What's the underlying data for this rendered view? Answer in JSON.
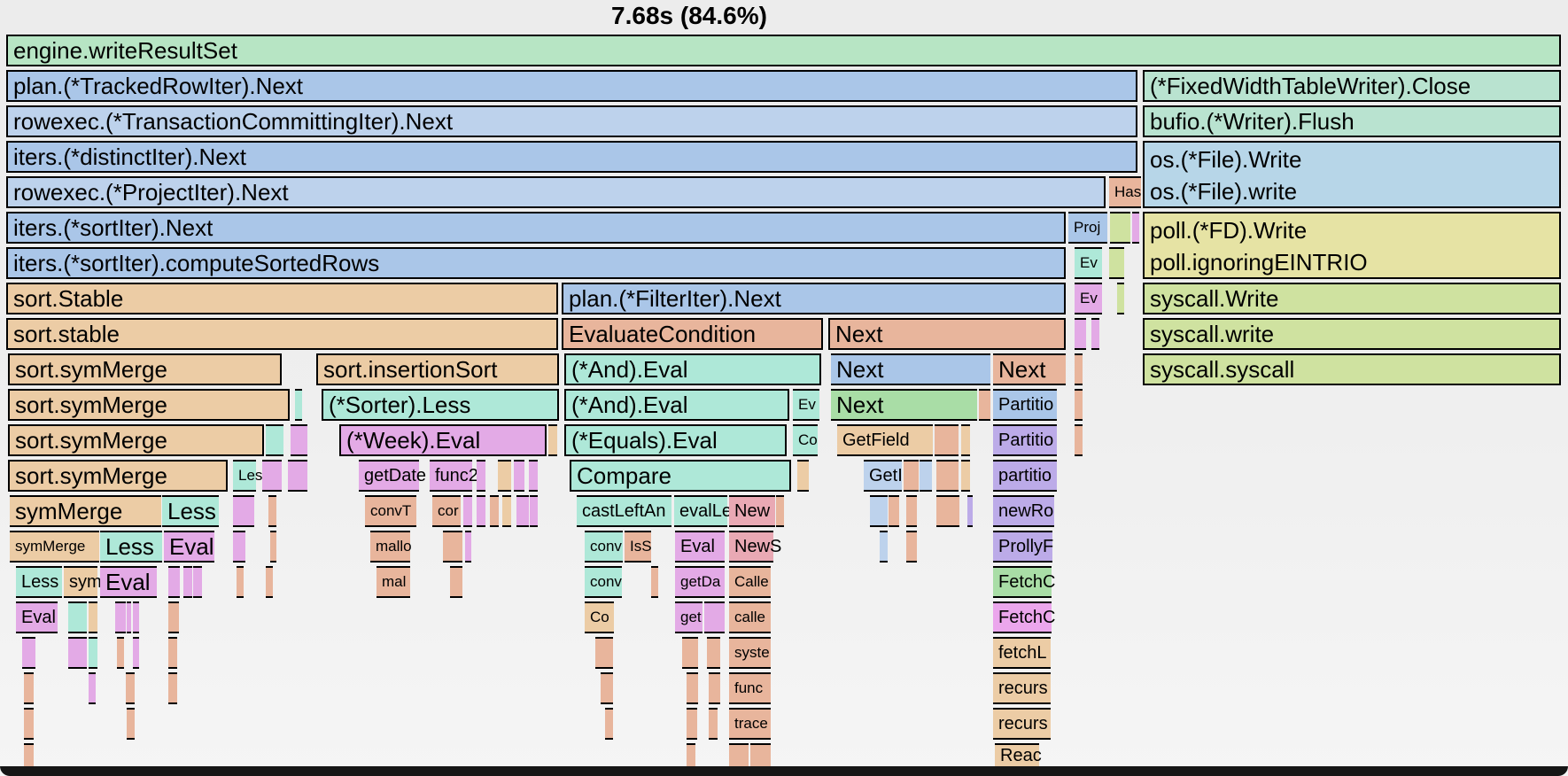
{
  "title": "7.68s (84.6%)",
  "palette": {
    "palegreen": "#b7e5c4",
    "tealgreen": "#b9e3d0",
    "blue": "#aac6e8",
    "blue2": "#bdd2ec",
    "lightblue": "#b7d6e8",
    "yellow": "#e6e3a4",
    "yellowgreen": "#cfe2a0",
    "tan": "#eccca5",
    "salmon": "#e8b59c",
    "pink": "#e9a9b4",
    "teal": "#aee8d8",
    "violet": "#e3aae6",
    "purple": "#bcabe8",
    "green": "#a9dda6",
    "orchid": "#eba6ec"
  },
  "chart_data": {
    "type": "flamegraph-icicle",
    "title": "7.68s (84.6%)",
    "note": "bars = [x, width, colorKey, label, fontSize(L/M/S), optional merge flag mt/mb]",
    "rows": [
      [
        [
          7,
          1755,
          "palegreen",
          "engine.writeResultSet",
          "L"
        ]
      ],
      [
        [
          7,
          1277,
          "blue",
          "plan.(*TrackedRowIter).Next",
          "L"
        ],
        [
          1290,
          472,
          "tealgreen",
          "(*FixedWidthTableWriter).Close",
          "L"
        ]
      ],
      [
        [
          7,
          1277,
          "blue2",
          "rowexec.(*TransactionCommittingIter).Next",
          "L"
        ],
        [
          1290,
          472,
          "tealgreen",
          "bufio.(*Writer).Flush",
          "L"
        ]
      ],
      [
        [
          7,
          1277,
          "blue",
          "iters.(*distinctIter).Next",
          "L"
        ],
        [
          1290,
          472,
          "lightblue",
          "os.(*File).Write",
          "L",
          "mb"
        ]
      ],
      [
        [
          7,
          1241,
          "blue2",
          "rowexec.(*ProjectIter).Next",
          "L"
        ],
        [
          1252,
          36,
          "salmon",
          "Has",
          "S"
        ],
        [
          1290,
          472,
          "lightblue",
          "os.(*File).write",
          "L",
          "mt"
        ]
      ],
      [
        [
          7,
          1196,
          "blue",
          "iters.(*sortIter).Next",
          "L"
        ],
        [
          1206,
          44,
          "blue",
          "Proj",
          "S"
        ],
        [
          1253,
          23,
          "yellowgreen",
          "",
          ""
        ],
        [
          1278,
          8,
          "violet",
          "",
          ""
        ],
        [
          1290,
          472,
          "yellow",
          "poll.(*FD).Write",
          "L",
          "mb"
        ]
      ],
      [
        [
          7,
          1196,
          "blue",
          "iters.(*sortIter).computeSortedRows",
          "L"
        ],
        [
          1213,
          31,
          "teal",
          "Ev",
          "S"
        ],
        [
          1252,
          17,
          "yellowgreen",
          "",
          ""
        ],
        [
          1290,
          472,
          "yellow",
          "poll.ignoringEINTRIO",
          "L",
          "mt"
        ]
      ],
      [
        [
          7,
          623,
          "tan",
          "sort.Stable",
          "L"
        ],
        [
          634,
          569,
          "blue",
          "plan.(*FilterIter).Next",
          "L"
        ],
        [
          1213,
          31,
          "violet",
          "Ev",
          "S"
        ],
        [
          1261,
          8,
          "yellowgreen",
          "",
          ""
        ],
        [
          1290,
          472,
          "yellowgreen",
          "syscall.Write",
          "L"
        ]
      ],
      [
        [
          7,
          623,
          "tan",
          "sort.stable",
          "L"
        ],
        [
          634,
          295,
          "salmon",
          "EvaluateCondition",
          "L"
        ],
        [
          935,
          268,
          "salmon",
          "Next",
          "L"
        ],
        [
          1213,
          13,
          "violet",
          "",
          ""
        ],
        [
          1232,
          9,
          "violet",
          "",
          ""
        ],
        [
          1290,
          472,
          "yellowgreen",
          "syscall.write",
          "L"
        ]
      ],
      [
        [
          9,
          309,
          "tan",
          "sort.symMerge",
          "L"
        ],
        [
          357,
          274,
          "tan",
          "sort.insertionSort",
          "L"
        ],
        [
          637,
          290,
          "teal",
          "(*And).Eval",
          "L"
        ],
        [
          938,
          180,
          "blue",
          "Next",
          "L"
        ],
        [
          1121,
          82,
          "salmon",
          "Next",
          "L"
        ],
        [
          1213,
          9,
          "salmon",
          "",
          ""
        ],
        [
          1290,
          472,
          "yellowgreen",
          "syscall.syscall",
          "L"
        ]
      ],
      [
        [
          9,
          318,
          "tan",
          "sort.symMerge",
          "L"
        ],
        [
          333,
          8,
          "teal",
          "",
          ""
        ],
        [
          363,
          268,
          "teal",
          "(*Sorter).Less",
          "L"
        ],
        [
          637,
          254,
          "teal",
          "(*And).Eval",
          "L"
        ],
        [
          895,
          30,
          "teal",
          "Ev",
          "S"
        ],
        [
          938,
          165,
          "green",
          "Next",
          "L"
        ],
        [
          1105,
          13,
          "salmon",
          "",
          ""
        ],
        [
          1121,
          72,
          "blue",
          "Partitio",
          "M"
        ],
        [
          1213,
          9,
          "salmon",
          "",
          ""
        ]
      ],
      [
        [
          9,
          289,
          "tan",
          "sort.symMerge",
          "L"
        ],
        [
          300,
          20,
          "teal",
          "",
          ""
        ],
        [
          328,
          19,
          "violet",
          "",
          ""
        ],
        [
          383,
          234,
          "violet",
          "(*Week).Eval",
          "L"
        ],
        [
          619,
          10,
          "tan",
          "",
          ""
        ],
        [
          637,
          251,
          "teal",
          "(*Equals).Eval",
          "L"
        ],
        [
          895,
          28,
          "teal",
          "Co",
          "S"
        ],
        [
          945,
          108,
          "tan",
          "GetField",
          "M"
        ],
        [
          1055,
          27,
          "salmon",
          "",
          ""
        ],
        [
          1085,
          10,
          "tan",
          "",
          ""
        ],
        [
          1121,
          72,
          "purple",
          "Partitio",
          "M"
        ],
        [
          1213,
          9,
          "salmon",
          "",
          ""
        ]
      ],
      [
        [
          9,
          248,
          "tan",
          "sort.symMerge",
          "L"
        ],
        [
          263,
          26,
          "teal",
          "Les",
          "S"
        ],
        [
          296,
          22,
          "violet",
          "",
          ""
        ],
        [
          325,
          22,
          "violet",
          "",
          ""
        ],
        [
          405,
          68,
          "violet",
          "getDate",
          "M"
        ],
        [
          485,
          48,
          "violet",
          "func2",
          "M"
        ],
        [
          538,
          10,
          "violet",
          "",
          ""
        ],
        [
          562,
          15,
          "tan",
          "",
          ""
        ],
        [
          580,
          12,
          "violet",
          "",
          ""
        ],
        [
          597,
          10,
          "violet",
          "",
          ""
        ],
        [
          643,
          250,
          "teal",
          "Compare",
          "L"
        ],
        [
          900,
          13,
          "tan",
          "",
          ""
        ],
        [
          975,
          43,
          "blue2",
          "GetI",
          "M"
        ],
        [
          1020,
          17,
          "salmon",
          "",
          ""
        ],
        [
          1038,
          14,
          "blue2",
          "",
          ""
        ],
        [
          1057,
          25,
          "salmon",
          "",
          ""
        ],
        [
          1085,
          10,
          "tan",
          "",
          ""
        ],
        [
          1121,
          72,
          "purple",
          "partitio",
          "M"
        ]
      ],
      [
        [
          11,
          171,
          "tan",
          "symMerge",
          "L"
        ],
        [
          183,
          64,
          "teal",
          "Less",
          "L"
        ],
        [
          263,
          24,
          "violet",
          "",
          ""
        ],
        [
          303,
          9,
          "salmon",
          "",
          ""
        ],
        [
          412,
          58,
          "salmon",
          "convT",
          "S"
        ],
        [
          488,
          32,
          "salmon",
          "cor",
          "S"
        ],
        [
          523,
          10,
          "violet",
          "",
          ""
        ],
        [
          538,
          10,
          "violet",
          "",
          ""
        ],
        [
          553,
          10,
          "salmon",
          "",
          ""
        ],
        [
          567,
          10,
          "tan",
          "",
          ""
        ],
        [
          583,
          14,
          "violet",
          "",
          ""
        ],
        [
          598,
          9,
          "violet",
          "",
          ""
        ],
        [
          651,
          107,
          "teal",
          "castLeftAn",
          "M"
        ],
        [
          761,
          60,
          "teal",
          "evalLe",
          "M"
        ],
        [
          823,
          52,
          "pink",
          "New",
          "M"
        ],
        [
          876,
          9,
          "salmon",
          "",
          ""
        ],
        [
          982,
          20,
          "blue2",
          "",
          ""
        ],
        [
          1003,
          12,
          "salmon",
          "",
          ""
        ],
        [
          1023,
          12,
          "salmon",
          "",
          ""
        ],
        [
          1057,
          26,
          "salmon",
          "",
          ""
        ],
        [
          1092,
          6,
          "purple",
          "",
          ""
        ],
        [
          1121,
          69,
          "purple",
          "newRo",
          "M"
        ]
      ],
      [
        [
          11,
          101,
          "tan",
          "symMerge",
          "S"
        ],
        [
          113,
          70,
          "teal",
          "Less",
          "L"
        ],
        [
          185,
          57,
          "violet",
          "Eval",
          "L"
        ],
        [
          263,
          14,
          "violet",
          "",
          ""
        ],
        [
          305,
          7,
          "salmon",
          "",
          ""
        ],
        [
          418,
          45,
          "salmon",
          "mallo",
          "S"
        ],
        [
          500,
          22,
          "salmon",
          "",
          ""
        ],
        [
          525,
          7,
          "violet",
          "",
          ""
        ],
        [
          660,
          43,
          "teal",
          "conv",
          "S"
        ],
        [
          705,
          30,
          "salmon",
          "IsS",
          "S"
        ],
        [
          762,
          56,
          "violet",
          "Eval",
          "M"
        ],
        [
          823,
          50,
          "pink",
          "NewS",
          "M"
        ],
        [
          993,
          9,
          "blue2",
          "",
          ""
        ],
        [
          1023,
          12,
          "salmon",
          "",
          ""
        ],
        [
          1121,
          67,
          "purple",
          "ProllyF",
          "M"
        ]
      ],
      [
        [
          18,
          52,
          "teal",
          "Less",
          "M"
        ],
        [
          72,
          38,
          "tan",
          "sym",
          "M"
        ],
        [
          113,
          64,
          "violet",
          "Eval",
          "L"
        ],
        [
          190,
          13,
          "violet",
          "",
          ""
        ],
        [
          207,
          10,
          "violet",
          "",
          ""
        ],
        [
          218,
          10,
          "violet",
          "",
          ""
        ],
        [
          267,
          8,
          "salmon",
          "",
          ""
        ],
        [
          300,
          8,
          "salmon",
          "",
          ""
        ],
        [
          425,
          38,
          "salmon",
          "mal",
          "S"
        ],
        [
          508,
          14,
          "salmon",
          "",
          ""
        ],
        [
          660,
          42,
          "teal",
          "conv",
          "S"
        ],
        [
          735,
          8,
          "salmon",
          "",
          ""
        ],
        [
          762,
          56,
          "violet",
          "getDa",
          "S"
        ],
        [
          823,
          47,
          "salmon",
          "Calle",
          "S"
        ],
        [
          1121,
          66,
          "green",
          "FetchC",
          "M"
        ]
      ],
      [
        [
          18,
          47,
          "violet",
          "Eval",
          "M"
        ],
        [
          77,
          21,
          "teal",
          "",
          ""
        ],
        [
          100,
          10,
          "tan",
          "",
          ""
        ],
        [
          130,
          12,
          "violet",
          "",
          ""
        ],
        [
          143,
          5,
          "violet",
          "",
          ""
        ],
        [
          150,
          7,
          "violet",
          "",
          ""
        ],
        [
          190,
          12,
          "salmon",
          "",
          ""
        ],
        [
          660,
          33,
          "tan",
          "Co",
          "S"
        ],
        [
          762,
          31,
          "violet",
          "get",
          "S"
        ],
        [
          795,
          23,
          "violet",
          "",
          ""
        ],
        [
          823,
          47,
          "salmon",
          "calle",
          "S"
        ],
        [
          1121,
          66,
          "orchid",
          "FetchC",
          "M"
        ]
      ],
      [
        [
          25,
          15,
          "violet",
          "",
          ""
        ],
        [
          77,
          21,
          "violet",
          "",
          ""
        ],
        [
          100,
          10,
          "teal",
          "",
          ""
        ],
        [
          132,
          8,
          "salmon",
          "",
          ""
        ],
        [
          150,
          7,
          "violet",
          "",
          ""
        ],
        [
          190,
          10,
          "salmon",
          "",
          ""
        ],
        [
          672,
          20,
          "salmon",
          "",
          ""
        ],
        [
          770,
          18,
          "salmon",
          "",
          ""
        ],
        [
          798,
          15,
          "salmon",
          "",
          ""
        ],
        [
          823,
          47,
          "salmon",
          "syste",
          "S"
        ],
        [
          1121,
          65,
          "tan",
          "fetchL",
          "M"
        ]
      ],
      [
        [
          27,
          11,
          "salmon",
          "",
          ""
        ],
        [
          100,
          8,
          "violet",
          "",
          ""
        ],
        [
          142,
          10,
          "salmon",
          "",
          ""
        ],
        [
          190,
          10,
          "salmon",
          "",
          ""
        ],
        [
          678,
          14,
          "salmon",
          "",
          ""
        ],
        [
          775,
          13,
          "salmon",
          "",
          ""
        ],
        [
          800,
          13,
          "salmon",
          "",
          ""
        ],
        [
          823,
          47,
          "salmon",
          "func",
          "S"
        ],
        [
          1121,
          65,
          "tan",
          "recurs",
          "M"
        ]
      ],
      [
        [
          27,
          11,
          "salmon",
          "",
          ""
        ],
        [
          143,
          9,
          "salmon",
          "",
          ""
        ],
        [
          683,
          9,
          "salmon",
          "",
          ""
        ],
        [
          775,
          12,
          "salmon",
          "",
          ""
        ],
        [
          800,
          10,
          "salmon",
          "",
          ""
        ],
        [
          823,
          47,
          "salmon",
          "trace",
          "S"
        ],
        [
          1121,
          65,
          "tan",
          "recurs",
          "M"
        ]
      ],
      [
        [
          27,
          11,
          "salmon",
          "",
          ""
        ],
        [
          775,
          10,
          "salmon",
          "",
          ""
        ],
        [
          823,
          22,
          "salmon",
          "",
          ""
        ],
        [
          847,
          23,
          "salmon",
          "",
          ""
        ],
        [
          1123,
          50,
          "tan",
          "Reac",
          "M"
        ]
      ]
    ]
  }
}
